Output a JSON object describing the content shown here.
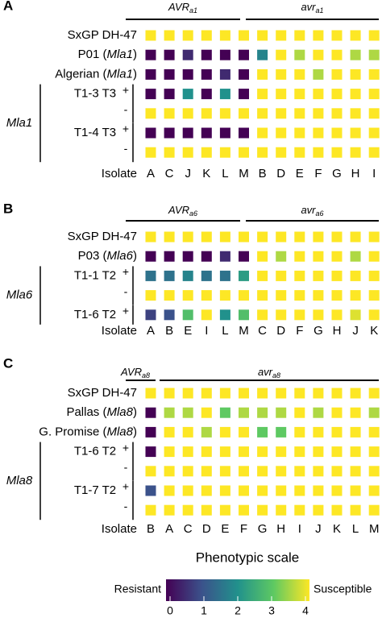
{
  "colorscale": {
    "title": "Phenotypic scale",
    "min_label": "Resistant",
    "max_label": "Susceptible",
    "ticks": [
      "0",
      "1",
      "2",
      "3",
      "4"
    ],
    "stops": [
      "#440154",
      "#3b528b",
      "#21918c",
      "#5ec962",
      "#fde725"
    ]
  },
  "chart_data": [
    {
      "type": "heatmap",
      "panel": "A",
      "x_title": "Isolate",
      "groups": [
        {
          "prefix": "AVR",
          "subscript": "a1",
          "columns": [
            "A",
            "C",
            "J",
            "K",
            "L",
            "M"
          ]
        },
        {
          "prefix": "avr",
          "subscript": "a1",
          "columns": [
            "B",
            "D",
            "E",
            "F",
            "G",
            "H",
            "I"
          ]
        }
      ],
      "columns": [
        "A",
        "C",
        "J",
        "K",
        "L",
        "M",
        "B",
        "D",
        "E",
        "F",
        "G",
        "H",
        "I"
      ],
      "rows": [
        {
          "name": "SxGP DH-47",
          "gene": "",
          "sign": "",
          "values": [
            4,
            4,
            4,
            4,
            4,
            4,
            4,
            4,
            4,
            4,
            4,
            4,
            4
          ]
        },
        {
          "name": "P01 (",
          "gene": "Mla1",
          "suffix": ")",
          "sign": "",
          "values": [
            0,
            0,
            0.5,
            0,
            0,
            0,
            1.8,
            4,
            3.5,
            4,
            4,
            3.5,
            3.5
          ]
        },
        {
          "name": "Algerian (",
          "gene": "Mla1",
          "suffix": ")",
          "sign": "",
          "values": [
            0,
            0,
            0,
            0,
            0.5,
            0,
            4,
            4,
            4,
            3.5,
            4,
            4,
            4
          ]
        },
        {
          "name": "T1-3 T3",
          "gene": "",
          "sign": "+",
          "values": [
            0,
            0,
            2,
            0,
            2,
            0,
            4,
            4,
            4,
            4,
            4,
            4,
            4
          ]
        },
        {
          "name": "",
          "gene": "",
          "sign": "-",
          "values": [
            4,
            4,
            4,
            4,
            4,
            4,
            4,
            4,
            4,
            4,
            4,
            4,
            4
          ]
        },
        {
          "name": "T1-4 T3",
          "gene": "",
          "sign": "+",
          "values": [
            0,
            0,
            0,
            0,
            0,
            0,
            4,
            4,
            4,
            4,
            4,
            4,
            4
          ]
        },
        {
          "name": "",
          "gene": "",
          "sign": "-",
          "values": [
            4,
            4,
            4,
            4,
            4,
            4,
            4,
            4,
            4,
            4,
            4,
            4,
            4
          ]
        }
      ],
      "bracket_gene": "Mla1"
    },
    {
      "type": "heatmap",
      "panel": "B",
      "x_title": "Isolate",
      "groups": [
        {
          "prefix": "AVR",
          "subscript": "a6",
          "columns": [
            "A",
            "B",
            "E",
            "I",
            "L",
            "M"
          ]
        },
        {
          "prefix": "avr",
          "subscript": "a6",
          "columns": [
            "C",
            "D",
            "F",
            "G",
            "H",
            "J",
            "K"
          ]
        }
      ],
      "columns": [
        "A",
        "B",
        "E",
        "I",
        "L",
        "M",
        "C",
        "D",
        "F",
        "G",
        "H",
        "J",
        "K"
      ],
      "rows": [
        {
          "name": "SxGP DH-47",
          "gene": "",
          "sign": "",
          "values": [
            4,
            4,
            4,
            4,
            4,
            4,
            4,
            4,
            4,
            4,
            4,
            4,
            4
          ]
        },
        {
          "name": "P03 (",
          "gene": "Mla6",
          "suffix": ")",
          "sign": "",
          "values": [
            0,
            0,
            0,
            0,
            0.5,
            0,
            4,
            3.5,
            4,
            4,
            4,
            3.5,
            4
          ]
        },
        {
          "name": "T1-1 T2",
          "gene": "",
          "sign": "+",
          "values": [
            1.5,
            1.5,
            1.8,
            1.5,
            1.5,
            2.2,
            4,
            4,
            4,
            4,
            4,
            4,
            4
          ]
        },
        {
          "name": "",
          "gene": "",
          "sign": "-",
          "values": [
            4,
            4,
            4,
            4,
            4,
            4,
            4,
            4,
            4,
            4,
            4,
            4,
            4
          ]
        },
        {
          "name": "T1-6 T2",
          "gene": "",
          "sign": "+",
          "values": [
            0.8,
            1,
            2.8,
            4,
            2,
            2.8,
            4,
            4,
            4,
            4,
            4,
            3.8,
            4
          ]
        }
      ],
      "bracket_gene": "Mla6"
    },
    {
      "type": "heatmap",
      "panel": "C",
      "x_title": "Isolate",
      "groups": [
        {
          "prefix": "AVR",
          "subscript": "a8",
          "columns": [
            "B"
          ]
        },
        {
          "prefix": "avr",
          "subscript": "a8",
          "columns": [
            "A",
            "C",
            "D",
            "E",
            "F",
            "G",
            "H",
            "I",
            "J",
            "K",
            "L",
            "M"
          ]
        }
      ],
      "columns": [
        "B",
        "A",
        "C",
        "D",
        "E",
        "F",
        "G",
        "H",
        "I",
        "J",
        "K",
        "L",
        "M"
      ],
      "rows": [
        {
          "name": "SxGP DH-47",
          "gene": "",
          "sign": "",
          "values": [
            4,
            4,
            4,
            4,
            4,
            4,
            4,
            4,
            4,
            4,
            4,
            4,
            4
          ]
        },
        {
          "name": "Pallas (",
          "gene": "Mla8",
          "suffix": ")",
          "sign": "",
          "values": [
            0,
            3.5,
            3.5,
            4,
            3,
            3.5,
            3.5,
            3.5,
            4,
            3.5,
            4,
            4,
            3.5
          ]
        },
        {
          "name": "G. Promise (",
          "gene": "Mla8",
          "suffix": ")",
          "sign": "",
          "values": [
            0,
            4,
            4,
            3.5,
            4,
            4,
            3,
            3,
            4,
            4,
            4,
            4,
            4
          ]
        },
        {
          "name": "T1-6 T2",
          "gene": "",
          "sign": "+",
          "values": [
            0,
            4,
            4,
            4,
            4,
            4,
            4,
            4,
            4,
            4,
            4,
            4,
            4
          ]
        },
        {
          "name": "",
          "gene": "",
          "sign": "-",
          "values": [
            4,
            4,
            4,
            4,
            4,
            4,
            4,
            4,
            4,
            4,
            4,
            4,
            4
          ]
        },
        {
          "name": "T1-7 T2",
          "gene": "",
          "sign": "+",
          "values": [
            1,
            4,
            4,
            4,
            4,
            4,
            4,
            4,
            4,
            4,
            4,
            4,
            4
          ]
        },
        {
          "name": "",
          "gene": "",
          "sign": "-",
          "values": [
            4,
            4,
            4,
            4,
            4,
            4,
            4,
            4,
            4,
            4,
            4,
            4,
            4
          ]
        }
      ],
      "bracket_gene": "Mla8"
    }
  ]
}
